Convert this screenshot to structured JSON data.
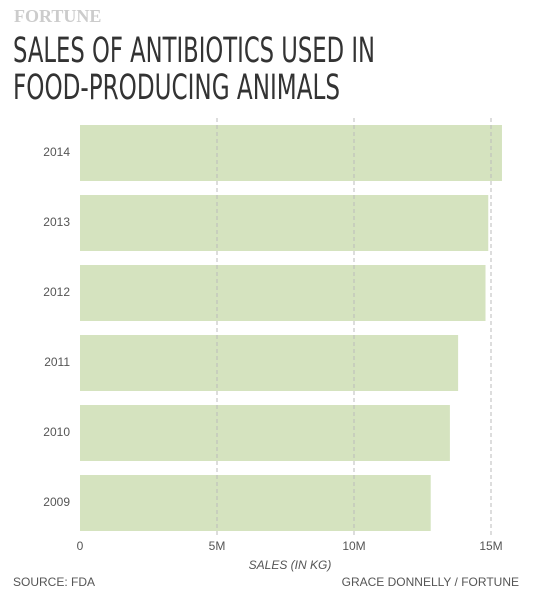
{
  "chart_data": {
    "type": "barh",
    "brand": "FORTUNE",
    "title": [
      "SALES OF ANTIBIOTICS USED IN",
      "FOOD-PRODUCING ANIMALS"
    ],
    "categories": [
      "2014",
      "2013",
      "2012",
      "2011",
      "2010",
      "2009"
    ],
    "values": [
      15400000,
      14900000,
      14800000,
      13800000,
      13500000,
      12800000
    ],
    "color": "#d5e3bf",
    "xlim": [
      0,
      16000000
    ],
    "xticks": [
      0,
      {
        "value": 5000000,
        "label": "5M"
      },
      {
        "value": 10000000,
        "label": "10M"
      },
      {
        "value": 15000000,
        "label": "15M"
      }
    ],
    "grid": true,
    "xlabel": "SALES (IN KG)",
    "source": "SOURCE: FDA",
    "credit": "GRACE DONNELLY / FORTUNE"
  }
}
